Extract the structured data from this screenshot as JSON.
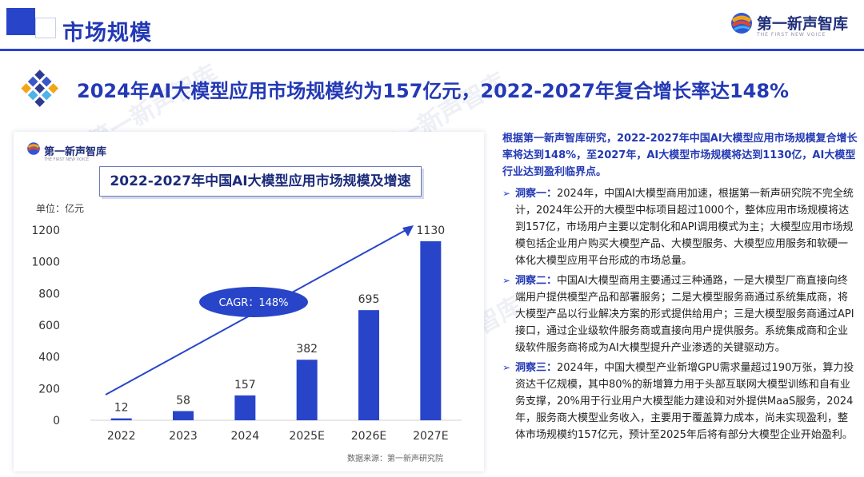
{
  "header": {
    "title": "市场规模",
    "logo_text": "第一新声智库",
    "logo_sub": "THE FIRST NEW VOICE"
  },
  "headline": "2024年AI大模型应用市场规模约为157亿元，2022-2027年复合增长率达148%",
  "watermark": "第一新声智库",
  "chart_panel": {
    "logo_text": "第一新声智库",
    "logo_sub": "THE FIRST NEW VOICE",
    "source": "数据来源：第一新声研究院"
  },
  "chart_data": {
    "type": "bar",
    "title": "2022-2027年中国AI大模型应用市场规模及增速",
    "unit_label": "单位：亿元",
    "categories": [
      "2022",
      "2023",
      "2024",
      "2025E",
      "2026E",
      "2027E"
    ],
    "values": [
      12,
      58,
      157,
      382,
      695,
      1130
    ],
    "ylim": [
      0,
      1200
    ],
    "yticks": [
      0,
      200,
      400,
      600,
      800,
      1000,
      1200
    ],
    "annotation": "CAGR：148%",
    "bar_color": "#2845c9",
    "grid": false
  },
  "right": {
    "summary": "根据第一新声智库研究，2022-2027年中国AI大模型应用市场规模复合增长率将达到148%，至2027年，AI大模型市场规模将达到1130亿，AI大模型行业达到盈利临界点。",
    "insights": [
      {
        "label": "洞察一：",
        "text": "2024年，中国AI大模型商用加速，根据第一新声研究院不完全统计，2024年公开的大模型中标项目超过1000个，整体应用市场规模将达到157亿，市场用户主要以定制化和API调用模式为主；大模型应用市场规模包括企业用户购买大模型产品、大模型服务、大模型应用服务和软硬一体化大模型应用平台形成的市场总量。"
      },
      {
        "label": "洞察二：",
        "text": "中国AI大模型商用主要通过三种通路，一是大模型厂商直接向终端用户提供模型产品和部署服务；二是大模型服务商通过系统集成商，将大模型产品以行业解决方案的形式提供给用户；三是大模型服务商通过API接口，通过企业级软件服务商或直接向用户提供服务。系统集成商和企业级软件服务商将成为AI大模型提升产业渗透的关键驱动方。"
      },
      {
        "label": "洞察三：",
        "text": "2024年，中国大模型产业新增GPU需求量超过190万张，算力投资达千亿规模，其中80%的新增算力用于头部互联网大模型训练和自有业务支撑，20%用于行业用户大模型能力建设和对外提供MaaS服务，2024年，服务商大模型业务收入，主要用于覆盖算力成本，尚未实现盈利，整体市场规模约157亿元，预计至2025年后将有部分大模型企业开始盈利。"
      }
    ]
  }
}
